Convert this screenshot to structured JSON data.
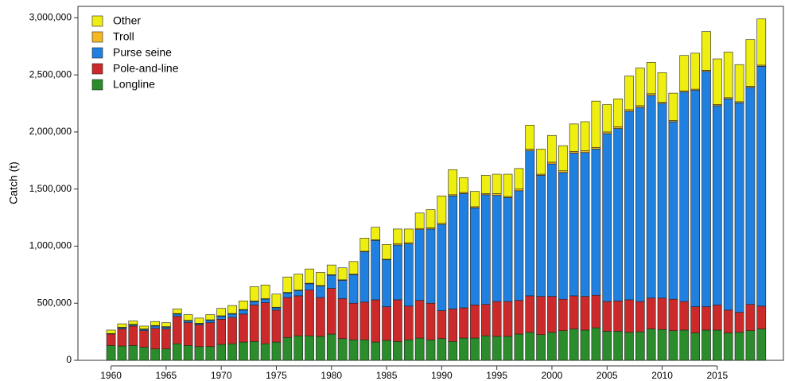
{
  "chart_data": {
    "type": "stacked-bar",
    "y_label": "Catch (t)",
    "x": [
      1960,
      1961,
      1962,
      1963,
      1964,
      1965,
      1966,
      1967,
      1968,
      1969,
      1970,
      1971,
      1972,
      1973,
      1974,
      1975,
      1976,
      1977,
      1978,
      1979,
      1980,
      1981,
      1982,
      1983,
      1984,
      1985,
      1986,
      1987,
      1988,
      1989,
      1990,
      1991,
      1992,
      1993,
      1994,
      1995,
      1996,
      1997,
      1998,
      1999,
      2000,
      2001,
      2002,
      2003,
      2004,
      2005,
      2006,
      2007,
      2008,
      2009,
      2010,
      2011,
      2012,
      2013,
      2014,
      2015,
      2016,
      2017,
      2018,
      2019
    ],
    "xlim": [
      1957,
      2021
    ],
    "xticks": [
      1960,
      1965,
      1970,
      1975,
      1980,
      1985,
      1990,
      1995,
      2000,
      2005,
      2010,
      2015
    ],
    "ylim": [
      0,
      3100000
    ],
    "yticks": [
      0,
      {
        "value": 500000,
        "label": "500,000"
      },
      {
        "value": 1000000,
        "label": "1,000,000"
      },
      {
        "value": 1500000,
        "label": "1,500,000"
      },
      {
        "value": 2000000,
        "label": "2,000,000"
      },
      {
        "value": 2500000,
        "label": "2,500,000"
      },
      {
        "value": 3000000,
        "label": "3,000,000"
      }
    ],
    "legend": "upper left",
    "series": [
      {
        "name": "Longline",
        "color": "#2a8c2a",
        "values": [
          130000,
          125000,
          130000,
          115000,
          100000,
          100000,
          145000,
          130000,
          120000,
          120000,
          140000,
          145000,
          160000,
          165000,
          145000,
          160000,
          200000,
          215000,
          215000,
          210000,
          230000,
          190000,
          180000,
          180000,
          160000,
          175000,
          165000,
          180000,
          195000,
          180000,
          190000,
          165000,
          195000,
          195000,
          215000,
          210000,
          210000,
          230000,
          245000,
          225000,
          245000,
          260000,
          275000,
          265000,
          285000,
          255000,
          255000,
          245000,
          250000,
          275000,
          270000,
          260000,
          265000,
          240000,
          265000,
          265000,
          240000,
          245000,
          260000,
          275000
        ]
      },
      {
        "name": "Pole-and-line",
        "color": "#cc2a2a",
        "values": [
          100000,
          150000,
          170000,
          145000,
          180000,
          175000,
          240000,
          200000,
          190000,
          210000,
          220000,
          230000,
          245000,
          320000,
          360000,
          280000,
          350000,
          350000,
          400000,
          340000,
          400000,
          350000,
          320000,
          330000,
          370000,
          295000,
          365000,
          295000,
          330000,
          320000,
          245000,
          285000,
          265000,
          290000,
          275000,
          305000,
          305000,
          295000,
          320000,
          335000,
          315000,
          275000,
          290000,
          295000,
          285000,
          260000,
          265000,
          285000,
          265000,
          270000,
          275000,
          275000,
          250000,
          230000,
          205000,
          220000,
          200000,
          175000,
          230000,
          200000
        ]
      },
      {
        "name": "Purse seine",
        "color": "#2080e0",
        "values": [
          0,
          10000,
          10000,
          10000,
          20000,
          15000,
          20000,
          15000,
          10000,
          20000,
          25000,
          30000,
          35000,
          30000,
          30000,
          20000,
          40000,
          45000,
          55000,
          100000,
          115000,
          160000,
          250000,
          440000,
          520000,
          410000,
          480000,
          545000,
          620000,
          650000,
          755000,
          990000,
          1000000,
          850000,
          960000,
          930000,
          910000,
          960000,
          1270000,
          1060000,
          1160000,
          1110000,
          1250000,
          1260000,
          1280000,
          1470000,
          1510000,
          1650000,
          1700000,
          1775000,
          1705000,
          1555000,
          1835000,
          1895000,
          2060000,
          1745000,
          1850000,
          1835000,
          1900000,
          2100000
        ]
      },
      {
        "name": "Troll",
        "color": "#f5b820",
        "values": [
          5000,
          5000,
          5000,
          5000,
          5000,
          5000,
          5000,
          5000,
          5000,
          5000,
          5000,
          5000,
          5000,
          5000,
          5000,
          5000,
          5000,
          5000,
          5000,
          5000,
          5000,
          5000,
          5000,
          5000,
          5000,
          5000,
          10000,
          10000,
          10000,
          10000,
          10000,
          10000,
          10000,
          10000,
          10000,
          15000,
          10000,
          15000,
          15000,
          10000,
          15000,
          15000,
          15000,
          15000,
          15000,
          15000,
          15000,
          15000,
          15000,
          15000,
          10000,
          10000,
          10000,
          10000,
          10000,
          10000,
          10000,
          10000,
          10000,
          10000
        ]
      },
      {
        "name": "Other",
        "color": "#eeee10",
        "values": [
          30000,
          30000,
          30000,
          25000,
          35000,
          35000,
          40000,
          50000,
          45000,
          45000,
          65000,
          70000,
          75000,
          125000,
          120000,
          115000,
          135000,
          140000,
          125000,
          115000,
          85000,
          105000,
          110000,
          115000,
          110000,
          130000,
          130000,
          120000,
          135000,
          160000,
          240000,
          220000,
          130000,
          135000,
          160000,
          170000,
          195000,
          180000,
          210000,
          220000,
          235000,
          220000,
          240000,
          255000,
          405000,
          240000,
          245000,
          295000,
          330000,
          275000,
          260000,
          240000,
          310000,
          315000,
          340000,
          400000,
          400000,
          325000,
          410000,
          405000
        ]
      }
    ]
  }
}
